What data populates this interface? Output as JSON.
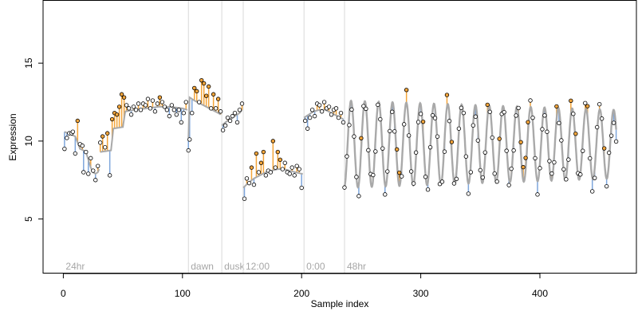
{
  "chart_data": {
    "type": "line",
    "title": "",
    "xlabel": "Sample index",
    "ylabel": "Expression",
    "xlim": [
      -17,
      481
    ],
    "ylim": [
      1.5,
      19.0
    ],
    "x_ticks": [
      0,
      100,
      200,
      300,
      400
    ],
    "y_ticks": [
      5,
      10,
      15
    ],
    "grid": false,
    "legend": "none",
    "colors": {
      "fit_line": "#a9a9a9",
      "residual_positive": "#f4a53a",
      "residual_negative": "#7ea6dc",
      "point_fill": "#f4a53a",
      "point_fill_alt": "#ffffff",
      "condition_line": "#d9d9d9",
      "condition_text": "#a6a6a6"
    },
    "conditions": [
      {
        "x": 0,
        "label": "24hr"
      },
      {
        "x": 105,
        "label": "dawn"
      },
      {
        "x": 133,
        "label": "dusk"
      },
      {
        "x": 151,
        "label": "12:00"
      },
      {
        "x": 202,
        "label": "0:00"
      },
      {
        "x": 236,
        "label": "48hr"
      }
    ],
    "series": [
      {
        "role": "fitted",
        "segments": [
          {
            "x0": 1,
            "x1": 30,
            "points": [
              [
                1,
                10.6
              ],
              [
                4,
                10.5
              ],
              [
                7,
                10.4
              ],
              [
                10,
                10.3
              ],
              [
                12,
                9.9
              ],
              [
                14,
                9.5
              ],
              [
                17,
                9.4
              ],
              [
                19,
                9.3
              ],
              [
                21,
                8.8
              ],
              [
                23,
                8.3
              ],
              [
                25,
                8.0
              ],
              [
                27,
                7.9
              ],
              [
                29,
                8.0
              ],
              [
                30,
                8.2
              ]
            ]
          },
          {
            "x0": 31,
            "x1": 104,
            "points": [
              [
                31,
                9.3
              ],
              [
                40,
                9.4
              ],
              [
                42,
                10.8
              ],
              [
                50,
                10.9
              ],
              [
                52,
                11.9
              ],
              [
                60,
                12.0
              ],
              [
                70,
                12.1
              ],
              [
                80,
                12.2
              ],
              [
                90,
                12.2
              ],
              [
                100,
                12.1
              ],
              [
                104,
                12.0
              ]
            ]
          },
          {
            "x0": 105,
            "x1": 132,
            "points": [
              [
                105,
                10.2
              ],
              [
                106,
                12.8
              ],
              [
                110,
                12.6
              ],
              [
                115,
                12.4
              ],
              [
                120,
                12.2
              ],
              [
                125,
                12.0
              ],
              [
                130,
                11.8
              ],
              [
                132,
                11.7
              ]
            ]
          },
          {
            "x0": 133,
            "x1": 150,
            "points": [
              [
                133,
                11.0
              ],
              [
                136,
                11.2
              ],
              [
                140,
                11.4
              ],
              [
                144,
                11.6
              ],
              [
                148,
                11.8
              ],
              [
                150,
                12.0
              ]
            ]
          },
          {
            "x0": 151,
            "x1": 201,
            "points": [
              [
                151,
                7.0
              ],
              [
                155,
                7.3
              ],
              [
                160,
                7.6
              ],
              [
                165,
                7.8
              ],
              [
                170,
                8.0
              ],
              [
                175,
                8.1
              ],
              [
                180,
                8.2
              ],
              [
                185,
                8.2
              ],
              [
                190,
                8.1
              ],
              [
                195,
                8.0
              ],
              [
                200,
                7.9
              ],
              [
                201,
                7.9
              ]
            ]
          },
          {
            "x0": 202,
            "x1": 235,
            "points": [
              [
                202,
                11.5
              ],
              [
                206,
                11.7
              ],
              [
                210,
                11.9
              ],
              [
                215,
                12.0
              ],
              [
                220,
                12.0
              ],
              [
                225,
                11.8
              ],
              [
                230,
                11.6
              ],
              [
                235,
                11.4
              ]
            ]
          }
        ],
        "oscillation": {
          "x0": 236,
          "x1": 464,
          "period": 11.6,
          "phase_x": 241.5,
          "center": 9.8,
          "amplitude_start": 2.8,
          "amplitude_end": 2.2
        }
      },
      {
        "role": "observed",
        "x": [
          1,
          3,
          5,
          7,
          8,
          10,
          12,
          14,
          16,
          17,
          19,
          21,
          23,
          25,
          27,
          29,
          31,
          33,
          35,
          37,
          39,
          41,
          43,
          45,
          47,
          49,
          51,
          53,
          55,
          57,
          59,
          61,
          63,
          65,
          67,
          69,
          71,
          73,
          75,
          77,
          79,
          81,
          83,
          85,
          87,
          89,
          91,
          93,
          95,
          97,
          99,
          101,
          103,
          105,
          106,
          108,
          110,
          112,
          114,
          116,
          118,
          120,
          122,
          124,
          126,
          128,
          130,
          132,
          134,
          136,
          138,
          140,
          142,
          144,
          146,
          148,
          150,
          152,
          154,
          156,
          158,
          160,
          162,
          164,
          166,
          168,
          170,
          172,
          174,
          176,
          178,
          180,
          182,
          184,
          186,
          188,
          190,
          192,
          194,
          196,
          198,
          200,
          203,
          205,
          207,
          209,
          211,
          213,
          215,
          217,
          219,
          221,
          223,
          225,
          227,
          229,
          231,
          233,
          235
        ],
        "values": [
          9.5,
          10.2,
          10.5,
          10.5,
          10.6,
          9.2,
          11.3,
          9.8,
          9.7,
          8.0,
          9.3,
          7.9,
          8.9,
          8.1,
          7.5,
          8.4,
          9.9,
          10.3,
          9.6,
          10.5,
          7.8,
          11.4,
          11.8,
          11.7,
          12.2,
          13.0,
          12.8,
          12.3,
          12.1,
          11.7,
          12.2,
          12.0,
          12.4,
          12.0,
          12.4,
          12.3,
          12.7,
          12.1,
          12.6,
          11.9,
          12.4,
          12.8,
          12.5,
          12.2,
          12.0,
          11.6,
          12.3,
          12.0,
          11.7,
          12.0,
          11.2,
          11.8,
          12.5,
          9.4,
          10.1,
          11.8,
          13.4,
          13.2,
          12.5,
          13.9,
          13.7,
          12.9,
          13.5,
          12.1,
          13.0,
          12.1,
          12.7,
          11.9,
          10.7,
          11.0,
          11.5,
          11.3,
          11.6,
          11.8,
          11.2,
          12.0,
          12.4,
          6.3,
          7.6,
          7.3,
          8.3,
          7.2,
          9.2,
          8.0,
          8.6,
          9.3,
          7.8,
          8.1,
          8.0,
          10.0,
          8.3,
          9.3,
          8.8,
          8.2,
          8.6,
          8.0,
          7.9,
          8.3,
          7.8,
          8.4,
          8.2,
          7.0,
          11.3,
          10.8,
          11.5,
          12.0,
          11.6,
          12.4,
          12.3,
          11.9,
          12.5,
          12.1,
          12.2,
          11.7,
          12.0,
          12.1,
          11.5,
          11.8,
          11.2
        ],
        "oscillation_noise_seed": 7
      }
    ]
  }
}
